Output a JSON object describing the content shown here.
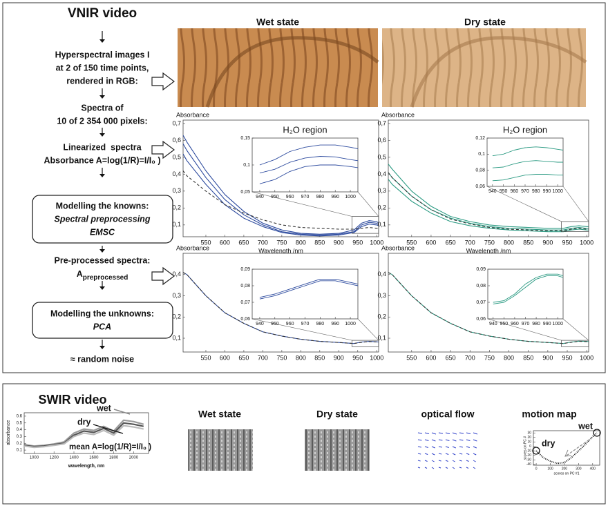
{
  "vnir": {
    "title": "VNIR video",
    "column_titles": [
      "Wet state",
      "Dry state"
    ],
    "steps": [
      [
        "Hyperspectral images I",
        "at 2 of 150 time points,",
        "rendered in RGB:"
      ],
      [
        "Spectra of",
        "10 of 2 354 000 pixels:"
      ],
      [
        "Linearized  spectra",
        "Absorbance A=log(1/R)=I/I₀ )"
      ],
      [
        "Modelling the knowns:",
        "Spectral preprocessing",
        "EMSC"
      ],
      [
        "Pre-processed spectra:",
        "A",
        "preprocessed"
      ],
      [
        "Modelling the unknowns:",
        "PCA"
      ],
      [
        "≈ random noise"
      ]
    ]
  },
  "swir": {
    "title": "SWIR video",
    "labels": [
      "Wet state",
      "Dry state",
      "optical flow",
      "motion map"
    ]
  },
  "chart_data": [
    {
      "type": "line",
      "y_label": "Absorbance",
      "x_label": "Wavelength /nm",
      "x": [
        490,
        500,
        550,
        600,
        650,
        700,
        750,
        800,
        850,
        900,
        940,
        960,
        980,
        1000,
        1005
      ],
      "xlim": [
        490,
        1005
      ],
      "xticks": [
        550,
        600,
        650,
        700,
        750,
        800,
        850,
        900,
        950,
        1000
      ],
      "ylim": [
        0.03,
        0.72
      ],
      "yticks": [
        {
          "value": 0.1,
          "label": "0,1"
        },
        {
          "value": 0.2,
          "label": "0,2"
        },
        {
          "value": 0.3,
          "label": "0,3"
        },
        {
          "value": 0.4,
          "label": "0,4"
        },
        {
          "value": 0.5,
          "label": "0,5"
        },
        {
          "value": 0.6,
          "label": "0,6"
        },
        {
          "value": 0.7,
          "label": "0,7"
        }
      ],
      "series": [
        {
          "color": "#2c4a9e",
          "values": [
            0.63,
            0.59,
            0.42,
            0.28,
            0.18,
            0.11,
            0.07,
            0.05,
            0.045,
            0.05,
            0.07,
            0.11,
            0.125,
            0.12,
            0.11
          ]
        },
        {
          "color": "#2c4a9e",
          "values": [
            0.58,
            0.54,
            0.38,
            0.25,
            0.16,
            0.1,
            0.06,
            0.045,
            0.04,
            0.045,
            0.06,
            0.1,
            0.115,
            0.11,
            0.1
          ]
        },
        {
          "color": "#2c4a9e",
          "values": [
            0.52,
            0.48,
            0.34,
            0.22,
            0.14,
            0.09,
            0.055,
            0.04,
            0.035,
            0.04,
            0.055,
            0.09,
            0.105,
            0.1,
            0.095
          ]
        },
        {
          "color": "#333333",
          "dashed": true,
          "values": [
            0.42,
            0.39,
            0.3,
            0.22,
            0.17,
            0.13,
            0.1,
            0.085,
            0.08,
            0.075,
            0.075,
            0.08,
            0.085,
            0.08,
            0.08
          ]
        }
      ],
      "inset": {
        "title": "H₂O region",
        "x": [
          940,
          950,
          960,
          970,
          980,
          990,
          1000,
          1005
        ],
        "xlim": [
          935,
          1005
        ],
        "xticks": [
          940,
          950,
          960,
          970,
          980,
          990,
          1000
        ],
        "ylim": [
          0.05,
          0.15
        ],
        "yticks": [
          {
            "value": 0.05,
            "label": "0,05"
          },
          {
            "value": 0.1,
            "label": "0,1"
          },
          {
            "value": 0.15,
            "label": "0,15"
          }
        ],
        "series": [
          {
            "color": "#2c4a9e",
            "values": [
              0.1,
              0.11,
              0.125,
              0.133,
              0.137,
              0.137,
              0.133,
              0.13
            ]
          },
          {
            "color": "#2c4a9e",
            "values": [
              0.085,
              0.092,
              0.105,
              0.113,
              0.116,
              0.115,
              0.11,
              0.108
            ]
          },
          {
            "color": "#2c4a9e",
            "values": [
              0.065,
              0.073,
              0.088,
              0.097,
              0.1,
              0.1,
              0.097,
              0.095
            ]
          }
        ]
      }
    },
    {
      "type": "line",
      "y_label": "Absorbance",
      "x_label": "Wavelength /nm",
      "x": [
        490,
        500,
        550,
        600,
        650,
        700,
        750,
        800,
        850,
        900,
        940,
        960,
        980,
        1000,
        1005
      ],
      "xlim": [
        490,
        1005
      ],
      "xticks": [
        550,
        600,
        650,
        700,
        750,
        800,
        850,
        900,
        950,
        1000
      ],
      "ylim": [
        0.03,
        0.72
      ],
      "yticks": [
        {
          "value": 0.1,
          "label": "0,1"
        },
        {
          "value": 0.2,
          "label": "0,2"
        },
        {
          "value": 0.3,
          "label": "0,3"
        },
        {
          "value": 0.4,
          "label": "0,4"
        },
        {
          "value": 0.5,
          "label": "0,5"
        },
        {
          "value": 0.6,
          "label": "0,6"
        },
        {
          "value": 0.7,
          "label": "0,7"
        }
      ],
      "series": [
        {
          "color": "#2a9a82",
          "values": [
            0.46,
            0.43,
            0.3,
            0.21,
            0.15,
            0.12,
            0.1,
            0.09,
            0.085,
            0.08,
            0.08,
            0.09,
            0.095,
            0.09,
            0.09
          ]
        },
        {
          "color": "#2a9a82",
          "values": [
            0.41,
            0.38,
            0.27,
            0.19,
            0.14,
            0.11,
            0.09,
            0.08,
            0.075,
            0.07,
            0.07,
            0.08,
            0.085,
            0.08,
            0.08
          ]
        },
        {
          "color": "#2a9a82",
          "values": [
            0.37,
            0.34,
            0.24,
            0.17,
            0.12,
            0.095,
            0.08,
            0.07,
            0.065,
            0.06,
            0.06,
            0.07,
            0.075,
            0.07,
            0.07
          ]
        },
        {
          "color": "#333333",
          "dashed": true,
          "values": [
            0.41,
            0.38,
            0.27,
            0.19,
            0.135,
            0.105,
            0.085,
            0.075,
            0.07,
            0.065,
            0.065,
            0.075,
            0.08,
            0.075,
            0.075
          ]
        }
      ],
      "inset": {
        "title": "H₂O region",
        "x": [
          940,
          950,
          960,
          970,
          980,
          990,
          1000,
          1005
        ],
        "xlim": [
          935,
          1005
        ],
        "xticks": [
          940,
          950,
          960,
          970,
          980,
          990,
          1000
        ],
        "ylim": [
          0.06,
          0.12
        ],
        "yticks": [
          {
            "value": 0.06,
            "label": "0,06"
          },
          {
            "value": 0.08,
            "label": "0,08"
          },
          {
            "value": 0.1,
            "label": "0,1"
          },
          {
            "value": 0.12,
            "label": "0,12"
          }
        ],
        "series": [
          {
            "color": "#2a9a82",
            "values": [
              0.098,
              0.1,
              0.105,
              0.108,
              0.109,
              0.108,
              0.106,
              0.105
            ]
          },
          {
            "color": "#2a9a82",
            "values": [
              0.083,
              0.084,
              0.088,
              0.091,
              0.092,
              0.091,
              0.09,
              0.09
            ]
          },
          {
            "color": "#2a9a82",
            "values": [
              0.067,
              0.068,
              0.071,
              0.074,
              0.075,
              0.075,
              0.074,
              0.074
            ]
          }
        ]
      }
    },
    {
      "type": "line",
      "y_label": "Absorbance",
      "x": [
        490,
        500,
        550,
        600,
        650,
        700,
        750,
        800,
        850,
        900,
        940,
        960,
        980,
        1000,
        1005
      ],
      "xlim": [
        490,
        1005
      ],
      "xticks": [
        550,
        600,
        650,
        700,
        750,
        800,
        850,
        900,
        950,
        1000
      ],
      "ylim": [
        0.035,
        0.5
      ],
      "yticks": [
        {
          "value": 0.1,
          "label": "0,1"
        },
        {
          "value": 0.2,
          "label": "0,2"
        },
        {
          "value": 0.3,
          "label": "0,3"
        },
        {
          "value": 0.4,
          "label": "0,4"
        }
      ],
      "series": [
        {
          "color": "#2c4a9e",
          "values": [
            0.41,
            0.4,
            0.3,
            0.22,
            0.17,
            0.13,
            0.11,
            0.095,
            0.085,
            0.08,
            0.075,
            0.082,
            0.085,
            0.083,
            0.082
          ]
        },
        {
          "color": "#333333",
          "dashed": true,
          "values": [
            0.41,
            0.4,
            0.3,
            0.22,
            0.17,
            0.13,
            0.11,
            0.095,
            0.085,
            0.08,
            0.075,
            0.081,
            0.084,
            0.082,
            0.081
          ]
        }
      ],
      "inset": {
        "x": [
          940,
          950,
          960,
          970,
          980,
          990,
          1000,
          1005
        ],
        "xlim": [
          935,
          1005
        ],
        "xticks": [
          940,
          950,
          960,
          970,
          980,
          990,
          1000
        ],
        "ylim": [
          0.06,
          0.09
        ],
        "yticks": [
          {
            "value": 0.06,
            "label": "0,06"
          },
          {
            "value": 0.07,
            "label": "0,07"
          },
          {
            "value": 0.08,
            "label": "0,08"
          },
          {
            "value": 0.09,
            "label": "0,09"
          }
        ],
        "series": [
          {
            "color": "#2c4a9e",
            "values": [
              0.072,
              0.074,
              0.077,
              0.08,
              0.083,
              0.083,
              0.081,
              0.08
            ]
          },
          {
            "color": "#2c4a9e",
            "values": [
              0.073,
              0.075,
              0.078,
              0.081,
              0.084,
              0.084,
              0.082,
              0.081
            ]
          }
        ]
      }
    },
    {
      "type": "line",
      "y_label": "Absorbance",
      "x": [
        490,
        500,
        550,
        600,
        650,
        700,
        750,
        800,
        850,
        900,
        940,
        960,
        980,
        1000,
        1005
      ],
      "xlim": [
        490,
        1005
      ],
      "xticks": [
        550,
        600,
        650,
        700,
        750,
        800,
        850,
        900,
        950,
        1000
      ],
      "ylim": [
        0.035,
        0.5
      ],
      "yticks": [
        {
          "value": 0.1,
          "label": "0,1"
        },
        {
          "value": 0.2,
          "label": "0,2"
        },
        {
          "value": 0.3,
          "label": "0,3"
        },
        {
          "value": 0.4,
          "label": "0,4"
        }
      ],
      "series": [
        {
          "color": "#2a9a82",
          "values": [
            0.41,
            0.4,
            0.3,
            0.22,
            0.17,
            0.13,
            0.11,
            0.095,
            0.085,
            0.08,
            0.075,
            0.082,
            0.086,
            0.085,
            0.084
          ]
        },
        {
          "color": "#333333",
          "dashed": true,
          "values": [
            0.41,
            0.4,
            0.3,
            0.22,
            0.17,
            0.13,
            0.11,
            0.095,
            0.085,
            0.08,
            0.075,
            0.081,
            0.085,
            0.084,
            0.083
          ]
        }
      ],
      "inset": {
        "x": [
          940,
          950,
          960,
          970,
          980,
          990,
          1000,
          1005
        ],
        "xlim": [
          935,
          1005
        ],
        "xticks": [
          940,
          950,
          960,
          970,
          980,
          990,
          1000
        ],
        "ylim": [
          0.06,
          0.09
        ],
        "yticks": [
          {
            "value": 0.06,
            "label": "0,06"
          },
          {
            "value": 0.07,
            "label": "0,07"
          },
          {
            "value": 0.08,
            "label": "0,08"
          },
          {
            "value": 0.09,
            "label": "0,09"
          }
        ],
        "series": [
          {
            "color": "#2a9a82",
            "values": [
              0.07,
              0.071,
              0.075,
              0.081,
              0.085,
              0.087,
              0.087,
              0.086
            ]
          },
          {
            "color": "#2a9a82",
            "values": [
              0.069,
              0.07,
              0.074,
              0.079,
              0.084,
              0.086,
              0.086,
              0.085
            ]
          }
        ]
      }
    },
    {
      "type": "line",
      "y_label": "absorbance",
      "x_label": "wavelength, nm",
      "annotations": [
        "wet",
        "dry",
        "mean A=log(1/R)=I/I₀ )"
      ],
      "x": [
        900,
        1000,
        1100,
        1200,
        1300,
        1400,
        1500,
        1600,
        1700,
        1800,
        1900,
        2000,
        2100
      ],
      "xlim": [
        900,
        2150
      ],
      "xticks": [
        1000,
        1200,
        1400,
        1600,
        1800,
        2000
      ],
      "ylim": [
        0.05,
        0.65
      ],
      "yticks": [
        0.1,
        0.2,
        0.3,
        0.4,
        0.5,
        0.6
      ],
      "series": [
        {
          "color": "#999999",
          "values": [
            0.18,
            0.16,
            0.17,
            0.19,
            0.22,
            0.35,
            0.41,
            0.39,
            0.45,
            0.38,
            0.54,
            0.52,
            0.48
          ]
        },
        {
          "color": "#555555",
          "values": [
            0.17,
            0.15,
            0.16,
            0.18,
            0.2,
            0.32,
            0.38,
            0.36,
            0.42,
            0.35,
            0.5,
            0.48,
            0.45
          ]
        },
        {
          "color": "#bbbbbb",
          "values": [
            0.16,
            0.14,
            0.15,
            0.17,
            0.19,
            0.3,
            0.35,
            0.33,
            0.39,
            0.32,
            0.46,
            0.44,
            0.41
          ]
        }
      ]
    },
    {
      "type": "line",
      "y_label": "scores on PC #",
      "x_label": "scores on PC #1",
      "annotations": [
        "wet",
        "dry"
      ],
      "x": [
        0,
        50,
        100,
        150,
        200,
        250,
        300,
        350,
        400,
        430
      ],
      "xlim": [
        -20,
        450
      ],
      "xticks": [
        0,
        100,
        200,
        300,
        400
      ],
      "ylim": [
        -42,
        35
      ],
      "yticks": [
        -40,
        -30,
        -20,
        -10,
        0,
        10,
        20,
        30
      ],
      "series": [
        {
          "color": "#111111",
          "dotted": true,
          "values": [
            -10,
            -25,
            -33,
            -38,
            -36,
            -25,
            -10,
            5,
            22,
            30
          ]
        }
      ]
    }
  ]
}
